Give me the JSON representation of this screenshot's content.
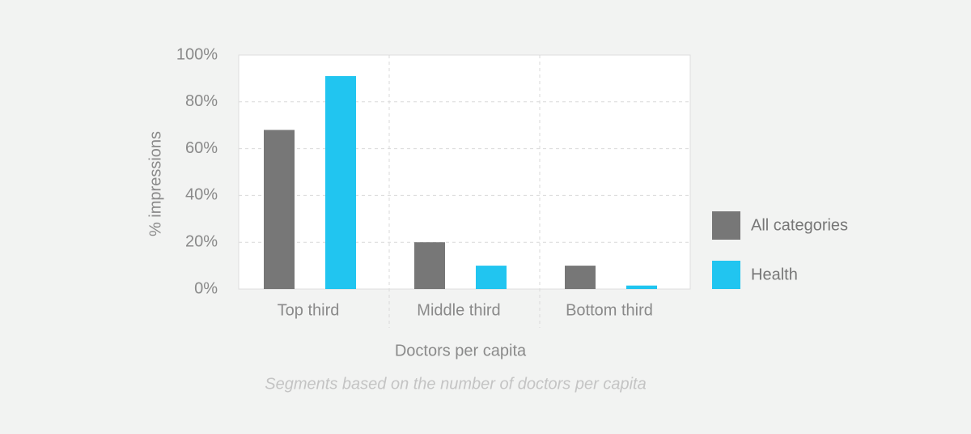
{
  "chart_data": {
    "type": "bar",
    "categories": [
      "Top third",
      "Middle third",
      "Bottom third"
    ],
    "series": [
      {
        "name": "All categories",
        "color": "#777777",
        "values": [
          68,
          20,
          10
        ]
      },
      {
        "name": "Health",
        "color": "#21c5f0",
        "values": [
          91,
          10,
          1.5
        ]
      }
    ],
    "ylim": [
      0,
      100
    ],
    "yticks": [
      {
        "value": 0,
        "label": "0%"
      },
      {
        "value": 20,
        "label": "20%"
      },
      {
        "value": 40,
        "label": "40%"
      },
      {
        "value": 60,
        "label": "60%"
      },
      {
        "value": 80,
        "label": "80%"
      },
      {
        "value": 100,
        "label": "100%"
      }
    ],
    "y_label": "% impressions",
    "x_label": "Doctors per capita",
    "caption": "Segments based on the number of doctors per capita",
    "grid": true,
    "legend": "right"
  }
}
